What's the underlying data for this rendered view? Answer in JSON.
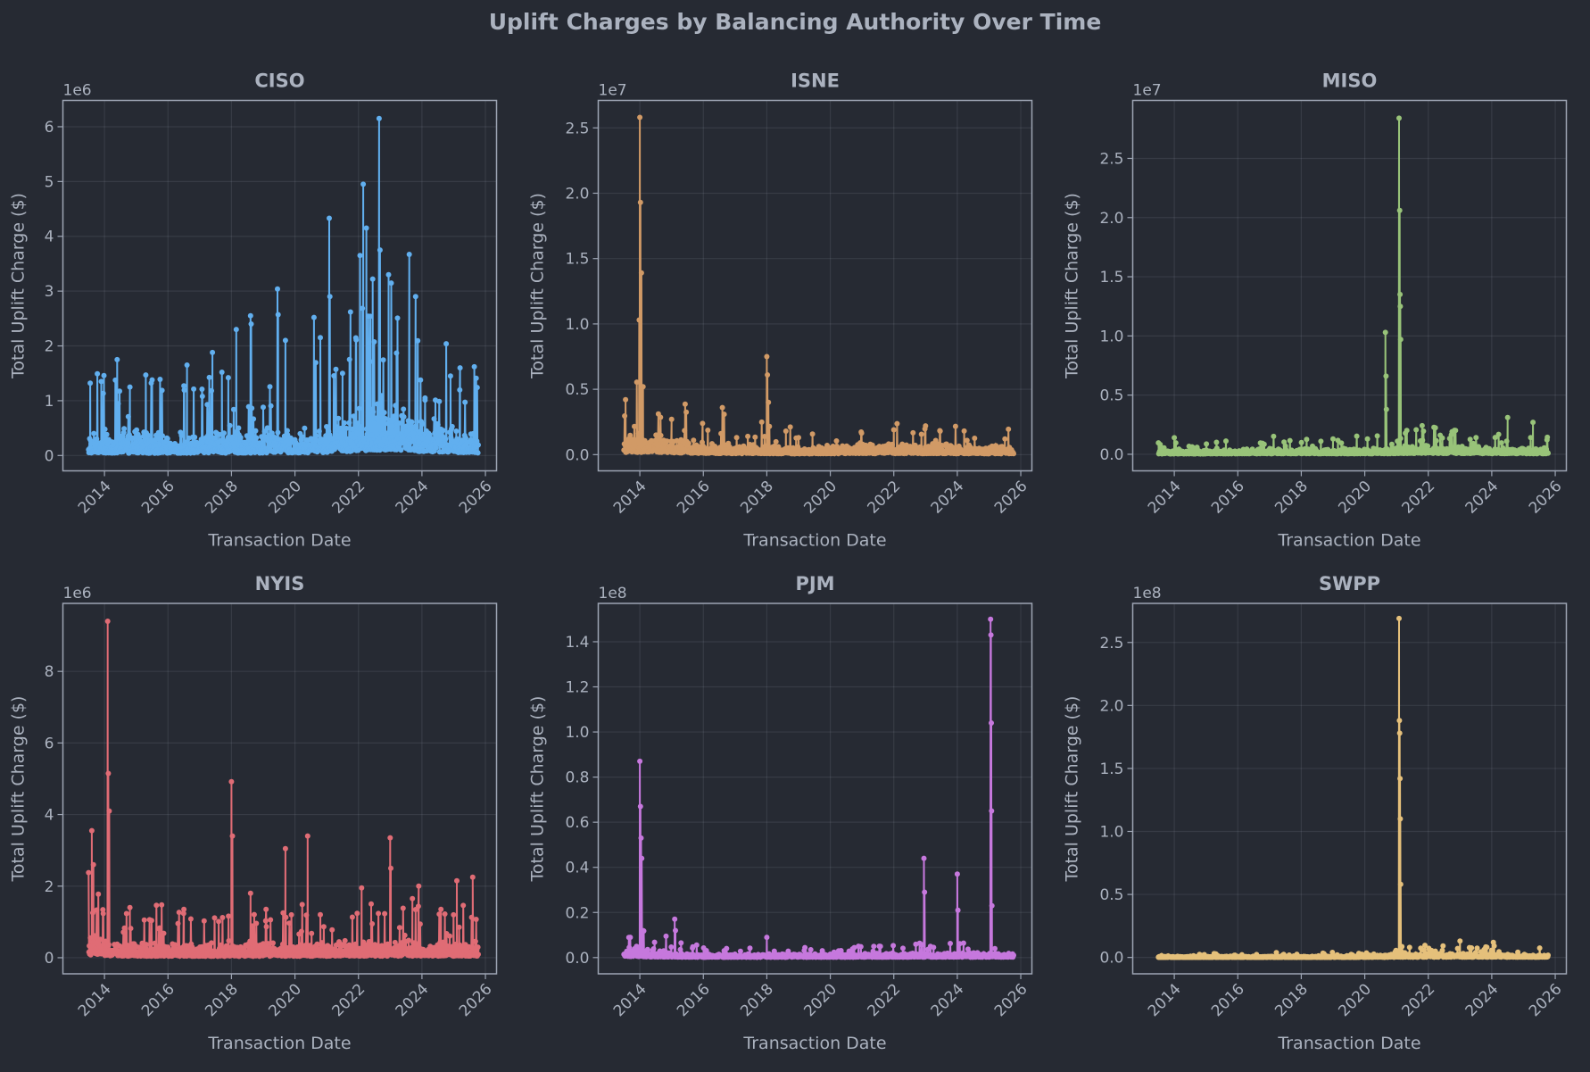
{
  "figure": {
    "title": "Uplift Charges by Balancing Authority Over Time"
  },
  "chart_data": [
    {
      "type": "line",
      "title": "CISO",
      "xlabel": "Transaction Date",
      "ylabel": "Total Uplift Charge ($)",
      "offset": "1e6",
      "color": "#61afef",
      "xlim": [
        2012.69,
        2026.35
      ],
      "ylim": [
        -0.28,
        6.48
      ],
      "xticks": [
        "2014",
        "2016",
        "2018",
        "2020",
        "2022",
        "2024",
        "2026"
      ],
      "yticks": [
        "0",
        "1",
        "2",
        "3",
        "4",
        "5",
        "6"
      ],
      "grid": true,
      "baseline": [
        [
          2013.5,
          0.3
        ],
        [
          2016,
          0.28
        ],
        [
          2019,
          0.3
        ],
        [
          2021,
          0.35
        ],
        [
          2022,
          0.55
        ],
        [
          2023,
          0.7
        ],
        [
          2024,
          0.45
        ],
        [
          2025.75,
          0.3
        ]
      ],
      "spikes": [
        [
          2013.55,
          1.32
        ],
        [
          2013.9,
          1.35
        ],
        [
          2014.4,
          1.75
        ],
        [
          2014.8,
          1.25
        ],
        [
          2015.3,
          1.47
        ],
        [
          2015.5,
          1.38
        ],
        [
          2015.75,
          1.39
        ],
        [
          2016.5,
          1.27
        ],
        [
          2016.6,
          1.65
        ],
        [
          2017.4,
          1.88
        ],
        [
          2017.7,
          1.52
        ],
        [
          2017.9,
          1.42
        ],
        [
          2018.15,
          2.3
        ],
        [
          2018.6,
          2.55
        ],
        [
          2018.62,
          2.4
        ],
        [
          2019.45,
          3.04
        ],
        [
          2019.47,
          2.57
        ],
        [
          2019.7,
          2.1
        ],
        [
          2020.6,
          2.52
        ],
        [
          2020.8,
          2.15
        ],
        [
          2021.08,
          4.33
        ],
        [
          2021.1,
          2.9
        ],
        [
          2021.5,
          1.5
        ],
        [
          2021.75,
          2.62
        ],
        [
          2022.05,
          3.65
        ],
        [
          2022.15,
          4.95
        ],
        [
          2022.25,
          4.15
        ],
        [
          2022.45,
          3.22
        ],
        [
          2022.65,
          6.15
        ],
        [
          2022.68,
          3.75
        ],
        [
          2022.95,
          3.3
        ],
        [
          2023.2,
          1.87
        ],
        [
          2023.6,
          3.67
        ],
        [
          2023.8,
          2.9
        ],
        [
          2024.1,
          1.05
        ],
        [
          2024.9,
          1.45
        ],
        [
          2025.2,
          1.6
        ],
        [
          2025.65,
          1.62
        ]
      ]
    },
    {
      "type": "line",
      "title": "ISNE",
      "xlabel": "Transaction Date",
      "ylabel": "Total Uplift Charge ($)",
      "offset": "1e7",
      "color": "#d19a66",
      "xlim": [
        2012.69,
        2026.35
      ],
      "ylim": [
        -0.124,
        2.71
      ],
      "xticks": [
        "2014",
        "2016",
        "2018",
        "2020",
        "2022",
        "2024",
        "2026"
      ],
      "yticks": [
        "0.0",
        "0.5",
        "1.0",
        "1.5",
        "2.0",
        "2.5"
      ],
      "grid": true,
      "baseline": [
        [
          2013.5,
          0.12
        ],
        [
          2015,
          0.1
        ],
        [
          2016,
          0.06
        ],
        [
          2019,
          0.04
        ],
        [
          2022,
          0.06
        ],
        [
          2025.75,
          0.04
        ]
      ],
      "spikes": [
        [
          2013.55,
          0.42
        ],
        [
          2013.98,
          1.03
        ],
        [
          2014.0,
          2.58
        ],
        [
          2014.02,
          1.93
        ],
        [
          2014.05,
          1.39
        ],
        [
          2014.1,
          0.52
        ],
        [
          2015.0,
          0.27
        ],
        [
          2016.6,
          0.36
        ],
        [
          2018.0,
          0.75
        ],
        [
          2018.02,
          0.61
        ],
        [
          2018.05,
          0.4
        ],
        [
          2018.6,
          0.18
        ],
        [
          2022.0,
          0.19
        ],
        [
          2023.0,
          0.22
        ],
        [
          2025.5,
          0.12
        ]
      ]
    },
    {
      "type": "line",
      "title": "MISO",
      "xlabel": "Transaction Date",
      "ylabel": "Total Uplift Charge ($)",
      "offset": "1e7",
      "color": "#98c379",
      "xlim": [
        2012.69,
        2026.35
      ],
      "ylim": [
        -0.14,
        2.99
      ],
      "xticks": [
        "2014",
        "2016",
        "2018",
        "2020",
        "2022",
        "2024",
        "2026"
      ],
      "yticks": [
        "0.0",
        "0.5",
        "1.0",
        "1.5",
        "2.0",
        "2.5"
      ],
      "grid": true,
      "baseline": [
        [
          2013.5,
          0.02
        ],
        [
          2017,
          0.03
        ],
        [
          2020,
          0.03
        ],
        [
          2022,
          0.05
        ],
        [
          2025.75,
          0.03
        ]
      ],
      "spikes": [
        [
          2014.0,
          0.14
        ],
        [
          2017.5,
          0.07
        ],
        [
          2019.0,
          0.13
        ],
        [
          2020.65,
          1.03
        ],
        [
          2020.67,
          0.66
        ],
        [
          2020.68,
          0.38
        ],
        [
          2021.08,
          2.84
        ],
        [
          2021.1,
          2.06
        ],
        [
          2021.11,
          1.35
        ],
        [
          2021.12,
          1.25
        ],
        [
          2021.13,
          0.97
        ],
        [
          2024.5,
          0.31
        ],
        [
          2025.3,
          0.27
        ]
      ]
    },
    {
      "type": "line",
      "title": "NYIS",
      "xlabel": "Transaction Date",
      "ylabel": "Total Uplift Charge ($)",
      "offset": "1e6",
      "color": "#e06c75",
      "xlim": [
        2012.69,
        2026.35
      ],
      "ylim": [
        -0.45,
        9.9
      ],
      "xticks": [
        "2014",
        "2016",
        "2018",
        "2020",
        "2022",
        "2024",
        "2026"
      ],
      "yticks": [
        "0",
        "2",
        "4",
        "6",
        "8"
      ],
      "grid": true,
      "baseline": [
        [
          2013.5,
          0.5
        ],
        [
          2014.5,
          0.3
        ],
        [
          2018,
          0.25
        ],
        [
          2022,
          0.3
        ],
        [
          2025.75,
          0.3
        ]
      ],
      "spikes": [
        [
          2013.6,
          3.55
        ],
        [
          2013.65,
          2.6
        ],
        [
          2014.1,
          9.4
        ],
        [
          2014.12,
          5.15
        ],
        [
          2014.15,
          4.1
        ],
        [
          2014.8,
          1.4
        ],
        [
          2016.5,
          1.35
        ],
        [
          2018.0,
          4.92
        ],
        [
          2018.03,
          3.4
        ],
        [
          2018.6,
          1.8
        ],
        [
          2019.7,
          3.05
        ],
        [
          2020.4,
          3.4
        ],
        [
          2020.8,
          1.2
        ],
        [
          2022.1,
          1.95
        ],
        [
          2022.4,
          1.5
        ],
        [
          2023.0,
          3.35
        ],
        [
          2023.02,
          2.5
        ],
        [
          2023.7,
          1.65
        ],
        [
          2023.9,
          2.0
        ],
        [
          2024.6,
          1.35
        ],
        [
          2025.1,
          2.15
        ],
        [
          2025.6,
          2.25
        ]
      ]
    },
    {
      "type": "line",
      "title": "PJM",
      "xlabel": "Transaction Date",
      "ylabel": "Total Uplift Charge ($)",
      "offset": "1e8",
      "color": "#c678dd",
      "xlim": [
        2012.69,
        2026.35
      ],
      "ylim": [
        -0.072,
        1.57
      ],
      "xticks": [
        "2014",
        "2016",
        "2018",
        "2020",
        "2022",
        "2024",
        "2026"
      ],
      "yticks": [
        "0.0",
        "0.2",
        "0.4",
        "0.6",
        "0.8",
        "1.0",
        "1.2",
        "1.4"
      ],
      "grid": true,
      "baseline": [
        [
          2013.5,
          0.04
        ],
        [
          2014.3,
          0.02
        ],
        [
          2016,
          0.01
        ],
        [
          2022,
          0.012
        ],
        [
          2025.75,
          0.015
        ]
      ],
      "spikes": [
        [
          2013.7,
          0.09
        ],
        [
          2014.0,
          0.87
        ],
        [
          2014.02,
          0.67
        ],
        [
          2014.04,
          0.53
        ],
        [
          2014.06,
          0.44
        ],
        [
          2015.1,
          0.17
        ],
        [
          2015.12,
          0.12
        ],
        [
          2018.0,
          0.09
        ],
        [
          2022.95,
          0.44
        ],
        [
          2022.97,
          0.29
        ],
        [
          2024.0,
          0.37
        ],
        [
          2024.02,
          0.21
        ],
        [
          2025.05,
          1.5
        ],
        [
          2025.06,
          1.43
        ],
        [
          2025.07,
          1.04
        ],
        [
          2025.08,
          0.65
        ],
        [
          2025.09,
          0.23
        ]
      ]
    },
    {
      "type": "line",
      "title": "SWPP",
      "xlabel": "Transaction Date",
      "ylabel": "Total Uplift Charge ($)",
      "offset": "1e8",
      "color": "#e5c07b",
      "xlim": [
        2012.69,
        2026.35
      ],
      "ylim": [
        -0.13,
        2.81
      ],
      "xticks": [
        "2014",
        "2016",
        "2018",
        "2020",
        "2022",
        "2024",
        "2026"
      ],
      "yticks": [
        "0.0",
        "0.5",
        "1.0",
        "1.5",
        "2.0",
        "2.5"
      ],
      "grid": true,
      "baseline": [
        [
          2013.5,
          0.005
        ],
        [
          2020,
          0.008
        ],
        [
          2022,
          0.02
        ],
        [
          2025.75,
          0.015
        ]
      ],
      "spikes": [
        [
          2021.08,
          2.69
        ],
        [
          2021.09,
          1.88
        ],
        [
          2021.1,
          1.78
        ],
        [
          2021.11,
          1.42
        ],
        [
          2021.12,
          1.1
        ],
        [
          2021.13,
          0.58
        ],
        [
          2023.0,
          0.13
        ],
        [
          2024.05,
          0.12
        ]
      ]
    }
  ]
}
